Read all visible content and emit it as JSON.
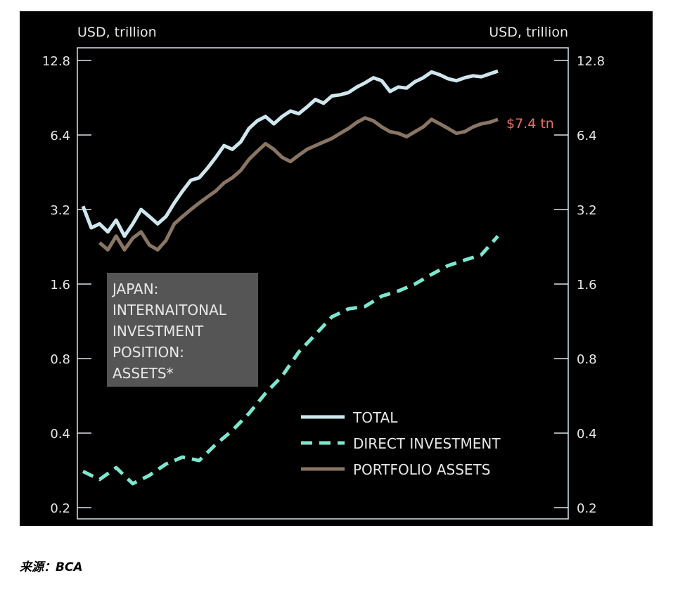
{
  "source_label": "来源：",
  "source_name": "BCA",
  "chart_data": {
    "type": "line",
    "scale": "log2",
    "left_axis_title": "USD, trillion",
    "right_axis_title": "USD, trillion",
    "ylim": [
      0.2,
      12.8
    ],
    "yticks": [
      0.2,
      0.4,
      0.8,
      1.6,
      3.2,
      6.4,
      12.8
    ],
    "ytick_labels": [
      "0.2",
      "0.4",
      "0.8",
      "1.6",
      "3.2",
      "6.4",
      "12.8"
    ],
    "x_range": [
      0,
      100
    ],
    "grid": false,
    "legend_position": "bottom-center",
    "colors": {
      "background": "#000000",
      "axis": "#d9e4ec",
      "text": "#e6e6e6",
      "total": "#cfe6ee",
      "direct": "#7ee6cf",
      "portfolio": "#8a7564",
      "annotation": "#e8706a",
      "title_box": "#555555"
    },
    "title_box_lines": [
      "JAPAN:",
      "INTERNAITONAL",
      "INVESTMENT",
      "POSITION:",
      "ASSETS*"
    ],
    "end_annotation": "$7.4 tn",
    "series": [
      {
        "name": "TOTAL",
        "style": "solid",
        "x": [
          0,
          2,
          4,
          6,
          8,
          10,
          12,
          14,
          16,
          18,
          20,
          22,
          24,
          26,
          28,
          30,
          32,
          34,
          36,
          38,
          40,
          42,
          44,
          46,
          48,
          50,
          52,
          54,
          56,
          58,
          60,
          62,
          64,
          66,
          68,
          70,
          72,
          74,
          76,
          78,
          80,
          82,
          84,
          86,
          88,
          90,
          92,
          94,
          96,
          98,
          100
        ],
        "values": [
          3.3,
          2.7,
          2.8,
          2.6,
          2.9,
          2.5,
          2.8,
          3.2,
          3.0,
          2.8,
          3.0,
          3.4,
          3.8,
          4.2,
          4.3,
          4.7,
          5.2,
          5.8,
          5.6,
          6.0,
          6.8,
          7.3,
          7.6,
          7.1,
          7.6,
          8.0,
          7.8,
          8.3,
          8.9,
          8.6,
          9.2,
          9.3,
          9.5,
          10.0,
          10.4,
          10.9,
          10.6,
          9.6,
          10.0,
          9.9,
          10.5,
          10.9,
          11.5,
          11.2,
          10.8,
          10.6,
          10.9,
          11.1,
          11.0,
          11.3,
          11.6
        ]
      },
      {
        "name": "DIRECT INVESTMENT",
        "style": "dashed",
        "x": [
          0,
          4,
          8,
          12,
          16,
          20,
          24,
          28,
          32,
          36,
          40,
          44,
          48,
          52,
          56,
          60,
          64,
          68,
          72,
          76,
          80,
          84,
          88,
          92,
          96,
          100
        ],
        "values": [
          0.28,
          0.26,
          0.29,
          0.25,
          0.27,
          0.3,
          0.32,
          0.31,
          0.36,
          0.41,
          0.48,
          0.58,
          0.68,
          0.85,
          1.0,
          1.18,
          1.27,
          1.3,
          1.43,
          1.5,
          1.6,
          1.75,
          1.9,
          2.0,
          2.1,
          2.5
        ]
      },
      {
        "name": "PORTFOLIO ASSETS",
        "style": "solid",
        "x": [
          4,
          6,
          8,
          10,
          12,
          14,
          16,
          18,
          20,
          22,
          24,
          26,
          28,
          30,
          32,
          34,
          36,
          38,
          40,
          42,
          44,
          46,
          48,
          50,
          52,
          54,
          56,
          58,
          60,
          62,
          64,
          66,
          68,
          70,
          72,
          74,
          76,
          78,
          80,
          82,
          84,
          86,
          88,
          90,
          92,
          94,
          96,
          98,
          100
        ],
        "values": [
          2.35,
          2.2,
          2.5,
          2.2,
          2.45,
          2.6,
          2.3,
          2.2,
          2.4,
          2.8,
          3.0,
          3.2,
          3.4,
          3.6,
          3.8,
          4.1,
          4.3,
          4.6,
          5.1,
          5.5,
          5.9,
          5.6,
          5.2,
          5.0,
          5.3,
          5.6,
          5.8,
          6.0,
          6.2,
          6.5,
          6.8,
          7.2,
          7.5,
          7.3,
          6.9,
          6.6,
          6.5,
          6.3,
          6.6,
          6.9,
          7.4,
          7.1,
          6.8,
          6.5,
          6.6,
          6.9,
          7.1,
          7.2,
          7.4
        ]
      }
    ]
  }
}
